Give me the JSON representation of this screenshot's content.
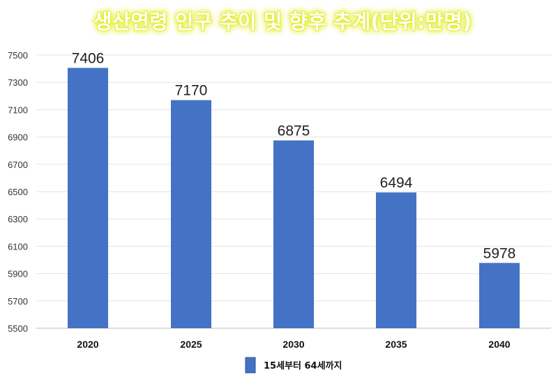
{
  "chart_data": {
    "type": "bar",
    "title": "생산연령 인구 추이 및 향후 추계(단위:만명)",
    "categories": [
      "2020",
      "2025",
      "2030",
      "2035",
      "2040"
    ],
    "series": [
      {
        "name": "15세부터 64세까지",
        "values": [
          7406,
          7170,
          6875,
          6494,
          5978
        ]
      }
    ],
    "ylim": [
      5500,
      7500
    ],
    "yticks": [
      5500,
      5700,
      5900,
      6100,
      6300,
      6500,
      6700,
      6900,
      7100,
      7300,
      7500
    ],
    "grid": true,
    "legend_position": "bottom",
    "bar_color": "#4472c4",
    "title_glow_color": "#d8e400",
    "xlabel": "",
    "ylabel": ""
  }
}
